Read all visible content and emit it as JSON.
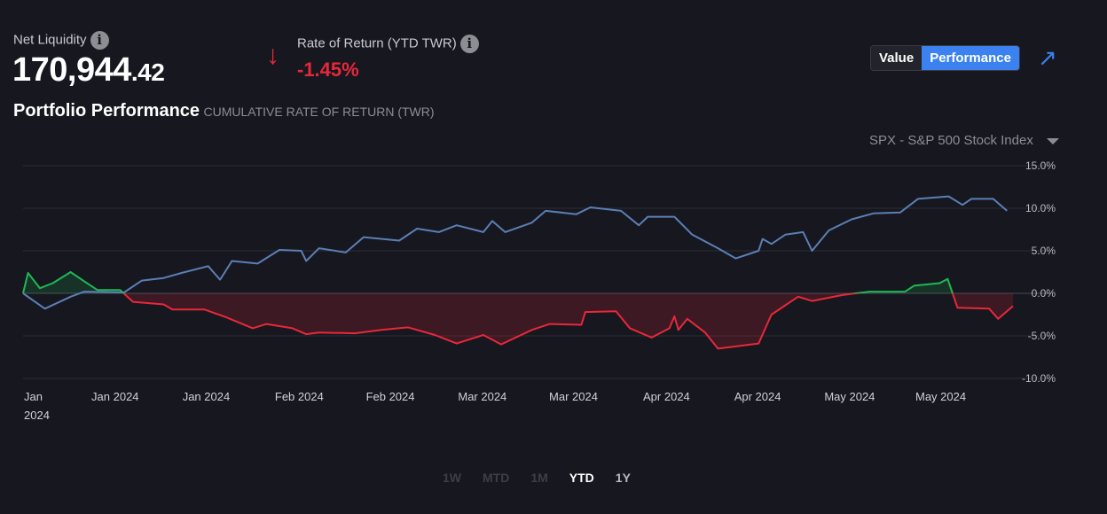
{
  "header": {
    "net_liquidity_label": "Net Liquidity",
    "net_liquidity_whole": "170,944",
    "net_liquidity_cents": ".42",
    "rate_of_return_label": "Rate of Return (YTD TWR)",
    "rate_of_return_value": "-1.45%",
    "info_icon": "i",
    "down_arrow": "↓"
  },
  "toggle": {
    "value_label": "Value",
    "performance_label": "Performance",
    "active": "Performance"
  },
  "expand_icon": "↗",
  "section": {
    "title": "Portfolio Performance",
    "subtitle": "CUMULATIVE RATE OF RETURN (TWR)"
  },
  "benchmark": {
    "selected": "SPX - S&P 500 Stock Index"
  },
  "range_tabs": [
    {
      "label": "1W",
      "state": "disabled"
    },
    {
      "label": "MTD",
      "state": "disabled"
    },
    {
      "label": "1M",
      "state": "disabled"
    },
    {
      "label": "YTD",
      "state": "active"
    },
    {
      "label": "1Y",
      "state": "normal"
    }
  ],
  "colors": {
    "benchmark": "#5b7fb5",
    "positive": "#1db954",
    "negative": "#e8283a",
    "accent": "#3b82f0"
  },
  "chart_data": {
    "type": "line",
    "title": "Portfolio Performance",
    "ylabel": "Cumulative Rate of Return (TWR)",
    "xlabel": "",
    "xlim": [
      0,
      100
    ],
    "ylim": [
      -10,
      15
    ],
    "yticks": [
      15,
      10,
      5,
      0,
      -5,
      -10
    ],
    "ytick_labels": [
      "15.0%",
      "10.0%",
      "5.0%",
      "0.0%",
      "-5.0%",
      "-10.0%"
    ],
    "xticks": [
      {
        "t": 0,
        "label": "Jan",
        "label2": "2024"
      },
      {
        "t": 9.3,
        "label": "Jan 2024"
      },
      {
        "t": 18.5,
        "label": "Jan 2024"
      },
      {
        "t": 27.9,
        "label": "Feb 2024"
      },
      {
        "t": 37.1,
        "label": "Feb 2024"
      },
      {
        "t": 46.4,
        "label": "Mar 2024"
      },
      {
        "t": 55.6,
        "label": "Mar 2024"
      },
      {
        "t": 65.0,
        "label": "Apr 2024"
      },
      {
        "t": 74.2,
        "label": "Apr 2024"
      },
      {
        "t": 83.5,
        "label": "May 2024"
      },
      {
        "t": 92.7,
        "label": "May 2024"
      }
    ],
    "grid": true,
    "series": [
      {
        "name": "SPX - S&P 500 Stock Index",
        "points": [
          [
            0,
            0
          ],
          [
            2.2,
            -1.8
          ],
          [
            4.8,
            -0.4
          ],
          [
            6.2,
            0.2
          ],
          [
            10.2,
            0.1
          ],
          [
            12,
            1.5
          ],
          [
            14.2,
            1.8
          ],
          [
            16,
            2.4
          ],
          [
            18.7,
            3.2
          ],
          [
            19.9,
            1.6
          ],
          [
            21.1,
            3.8
          ],
          [
            23.7,
            3.5
          ],
          [
            25.9,
            5.1
          ],
          [
            28.1,
            5.0
          ],
          [
            28.6,
            3.8
          ],
          [
            29.9,
            5.3
          ],
          [
            32.6,
            4.8
          ],
          [
            34.4,
            6.6
          ],
          [
            38,
            6.2
          ],
          [
            39.8,
            7.6
          ],
          [
            42,
            7.2
          ],
          [
            43.8,
            8.0
          ],
          [
            46.5,
            7.2
          ],
          [
            47.4,
            8.5
          ],
          [
            48.7,
            7.2
          ],
          [
            51.4,
            8.3
          ],
          [
            52.8,
            9.7
          ],
          [
            55.9,
            9.3
          ],
          [
            57.3,
            10.1
          ],
          [
            60.4,
            9.7
          ],
          [
            62.2,
            8.0
          ],
          [
            63.1,
            9.0
          ],
          [
            65.8,
            9.0
          ],
          [
            67.6,
            6.9
          ],
          [
            70.2,
            5.3
          ],
          [
            72,
            4.1
          ],
          [
            74.3,
            5.0
          ],
          [
            74.7,
            6.4
          ],
          [
            75.6,
            5.8
          ],
          [
            77,
            6.9
          ],
          [
            78.8,
            7.2
          ],
          [
            79.7,
            5.0
          ],
          [
            81.4,
            7.4
          ],
          [
            83.7,
            8.7
          ],
          [
            85.9,
            9.4
          ],
          [
            88.6,
            9.5
          ],
          [
            90.4,
            11.1
          ],
          [
            93.5,
            11.4
          ],
          [
            94.9,
            10.4
          ],
          [
            95.8,
            11.1
          ],
          [
            98,
            11.1
          ],
          [
            99.4,
            9.7
          ]
        ]
      },
      {
        "name": "Portfolio",
        "points": [
          [
            0,
            0
          ],
          [
            0.5,
            2.4
          ],
          [
            1.7,
            0.6
          ],
          [
            3,
            1.2
          ],
          [
            4.8,
            2.5
          ],
          [
            6.2,
            1.4
          ],
          [
            7.5,
            0.4
          ],
          [
            9.8,
            0.4
          ],
          [
            11.1,
            -1.0
          ],
          [
            14.2,
            -1.3
          ],
          [
            15.1,
            -1.9
          ],
          [
            18.3,
            -1.9
          ],
          [
            20.5,
            -2.8
          ],
          [
            23.2,
            -4.1
          ],
          [
            24.6,
            -3.6
          ],
          [
            27.2,
            -4.1
          ],
          [
            28.6,
            -4.8
          ],
          [
            29.9,
            -4.6
          ],
          [
            33.5,
            -4.7
          ],
          [
            36.2,
            -4.3
          ],
          [
            38.9,
            -4.0
          ],
          [
            41.6,
            -4.9
          ],
          [
            43.8,
            -5.9
          ],
          [
            46.5,
            -4.9
          ],
          [
            48.3,
            -6.0
          ],
          [
            51.4,
            -4.3
          ],
          [
            53.2,
            -3.6
          ],
          [
            56.4,
            -3.7
          ],
          [
            56.8,
            -2.2
          ],
          [
            59.9,
            -2.1
          ],
          [
            61.3,
            -4.1
          ],
          [
            63.5,
            -5.2
          ],
          [
            65.3,
            -4.1
          ],
          [
            65.8,
            -2.7
          ],
          [
            66.2,
            -4.3
          ],
          [
            67.1,
            -3.0
          ],
          [
            68.9,
            -4.6
          ],
          [
            70.2,
            -6.5
          ],
          [
            74.3,
            -5.9
          ],
          [
            75.6,
            -2.5
          ],
          [
            78.3,
            -0.4
          ],
          [
            79.7,
            -0.9
          ],
          [
            82.8,
            -0.2
          ],
          [
            85.5,
            0.2
          ],
          [
            89.1,
            0.2
          ],
          [
            90,
            0.9
          ],
          [
            92.6,
            1.2
          ],
          [
            93.4,
            1.7
          ],
          [
            94.4,
            -1.7
          ],
          [
            97.6,
            -1.8
          ],
          [
            98.5,
            -3.0
          ],
          [
            100,
            -1.5
          ]
        ]
      }
    ]
  }
}
